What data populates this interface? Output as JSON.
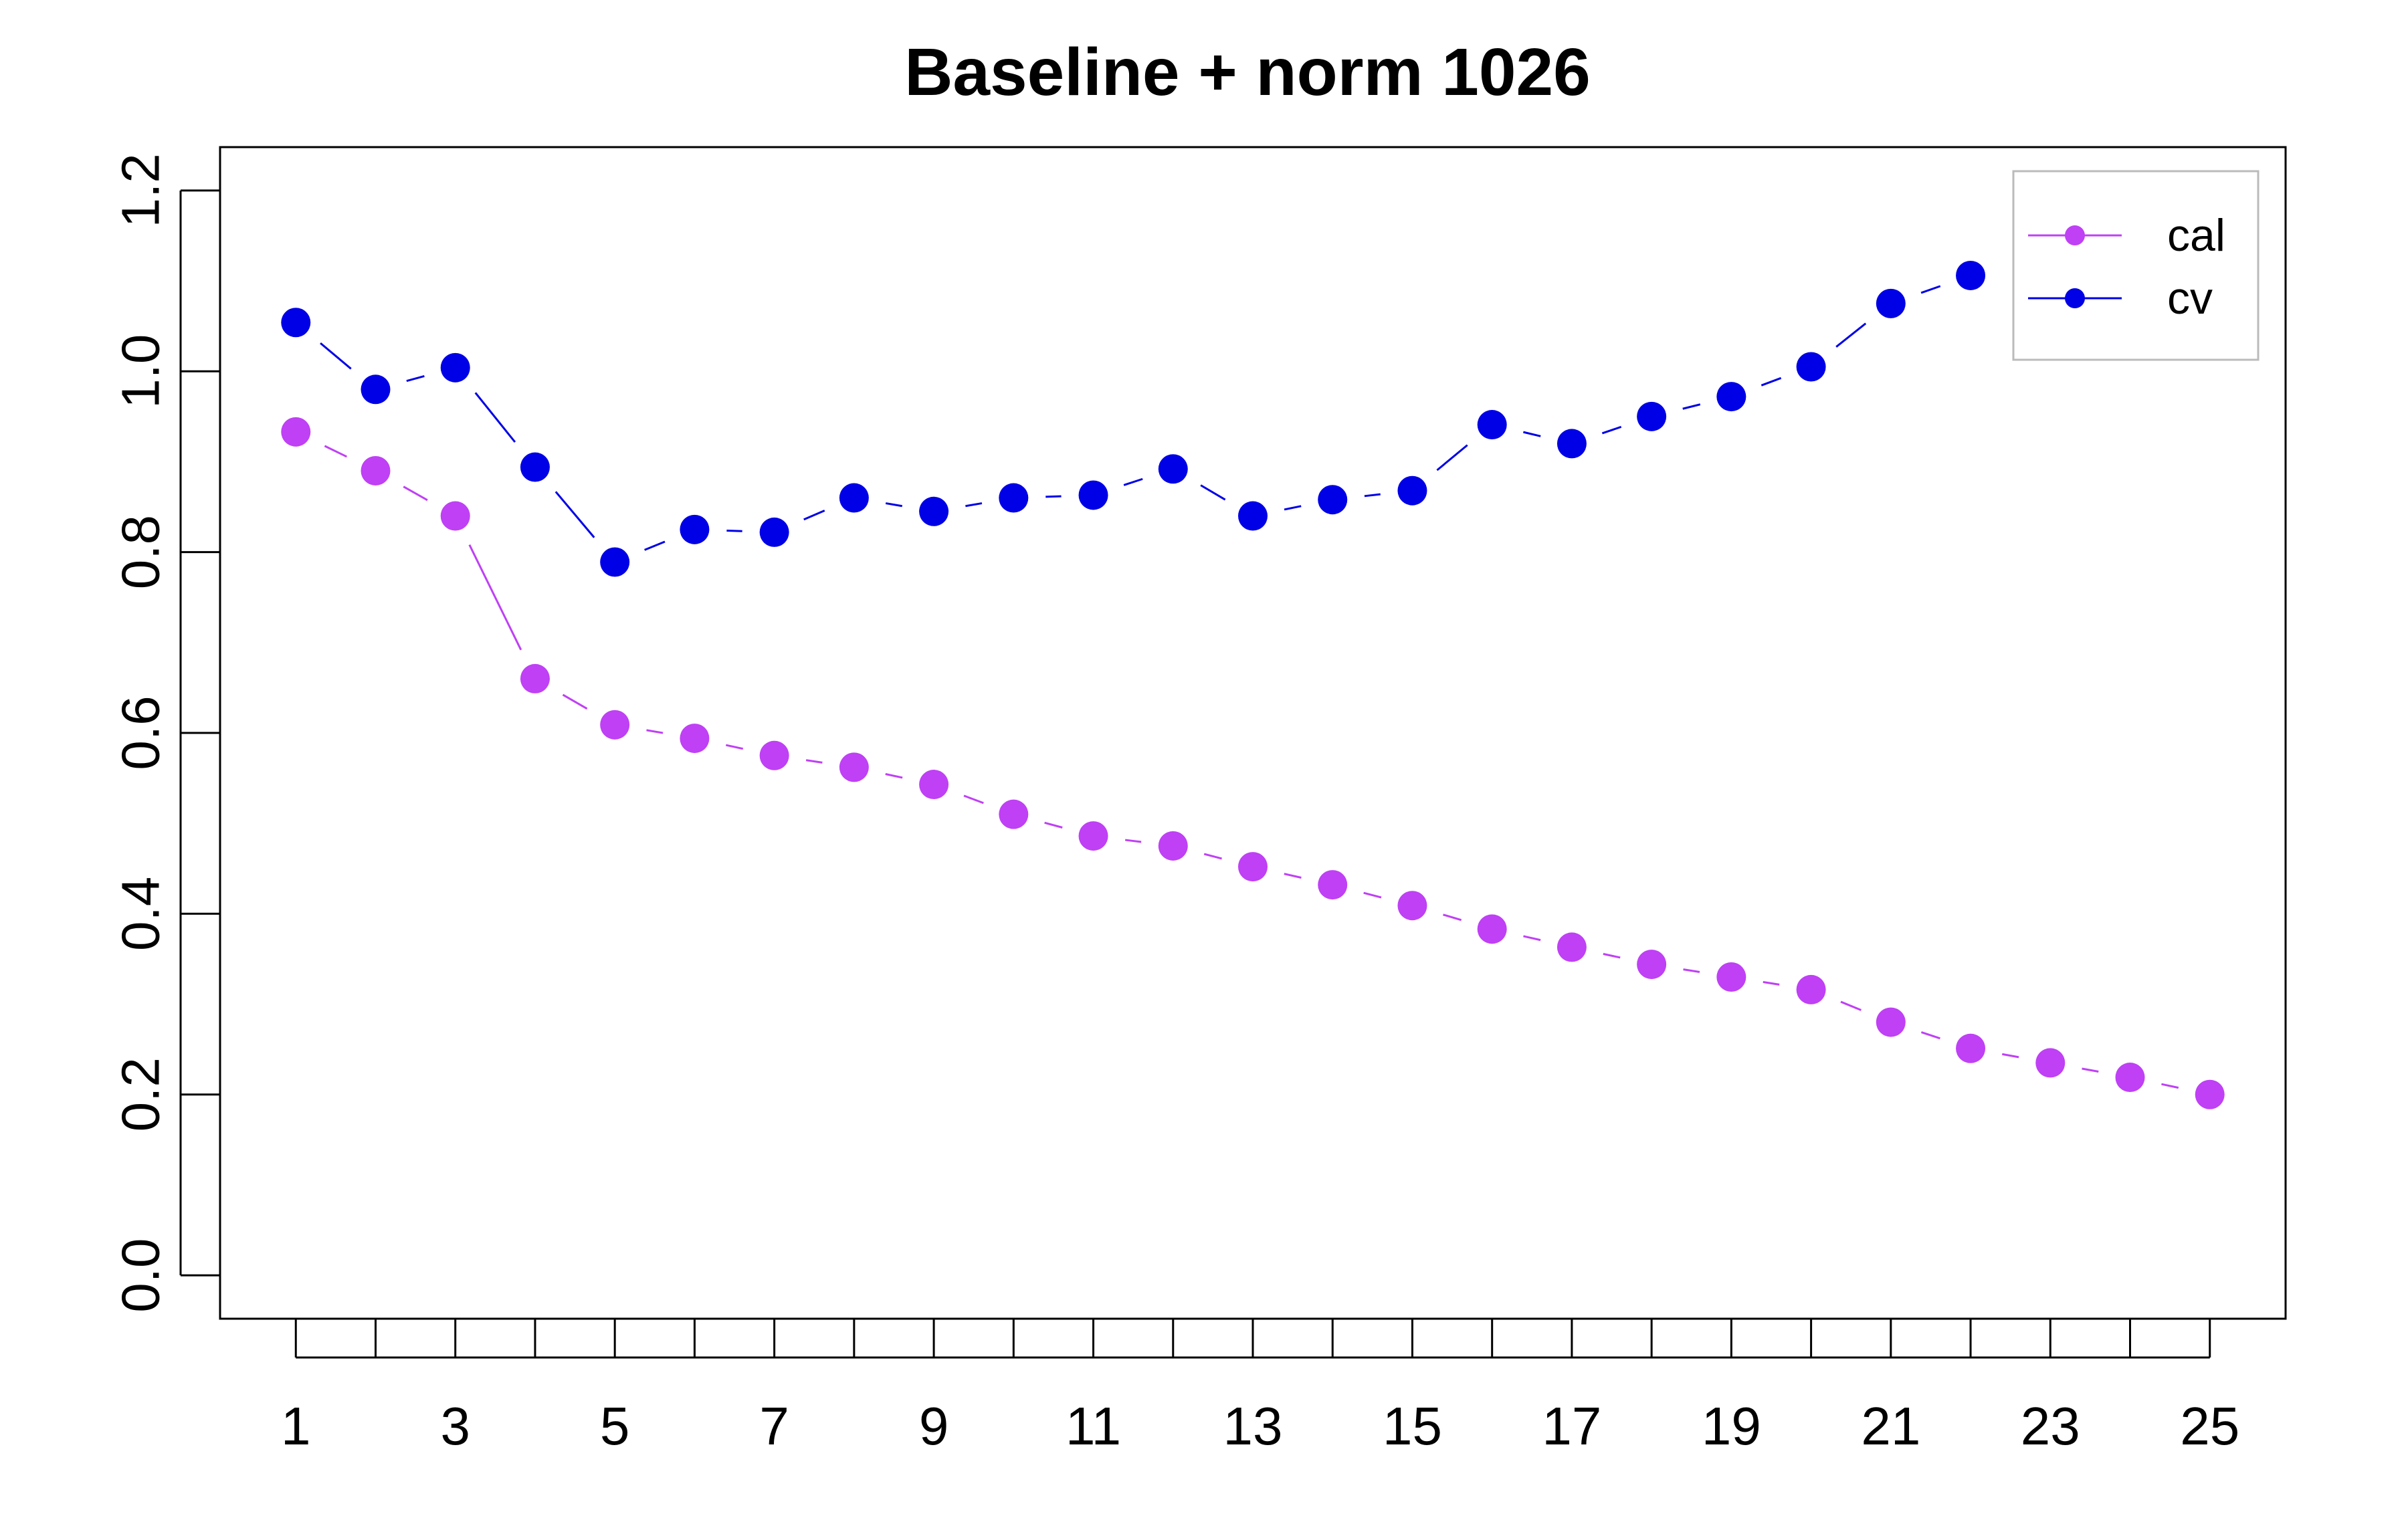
{
  "chart_data": {
    "type": "line",
    "title": "Baseline + norm 1026",
    "xlabel": "",
    "ylabel": "",
    "x": [
      1,
      2,
      3,
      4,
      5,
      6,
      7,
      8,
      9,
      10,
      11,
      12,
      13,
      14,
      15,
      16,
      17,
      18,
      19,
      20,
      21,
      22,
      23,
      24,
      25
    ],
    "x_tick_labels": [
      "1",
      "3",
      "5",
      "7",
      "9",
      "11",
      "13",
      "15",
      "17",
      "19",
      "21",
      "23",
      "25"
    ],
    "x_tick_marks": [
      1,
      2,
      3,
      4,
      5,
      6,
      7,
      8,
      9,
      10,
      11,
      12,
      13,
      14,
      15,
      16,
      17,
      18,
      19,
      20,
      21,
      22,
      23,
      24,
      25
    ],
    "xlim": [
      0.05,
      25.95
    ],
    "ylim": [
      -0.048,
      1.248
    ],
    "y_ticks": [
      0.0,
      0.2,
      0.4,
      0.6,
      0.8,
      1.0,
      1.2
    ],
    "y_tick_labels": [
      "0.0",
      "0.2",
      "0.4",
      "0.6",
      "0.8",
      "1.0",
      "1.2"
    ],
    "grid": false,
    "legend_position": "top-right",
    "series": [
      {
        "name": "cal",
        "color": "#bf40f5",
        "values": [
          0.933,
          0.89,
          0.84,
          0.66,
          0.609,
          0.594,
          0.575,
          0.562,
          0.543,
          0.51,
          0.486,
          0.475,
          0.452,
          0.432,
          0.409,
          0.383,
          0.363,
          0.344,
          0.33,
          0.316,
          0.28,
          0.251,
          0.235,
          0.219,
          0.2
        ]
      },
      {
        "name": "cv",
        "color": "#0000e6",
        "values": [
          1.054,
          0.98,
          1.004,
          0.894,
          0.789,
          0.825,
          0.822,
          0.86,
          0.845,
          0.86,
          0.863,
          0.892,
          0.84,
          0.858,
          0.868,
          0.941,
          0.92,
          0.95,
          0.972,
          1.005,
          1.075,
          1.106,
          null,
          null,
          null
        ]
      }
    ]
  }
}
